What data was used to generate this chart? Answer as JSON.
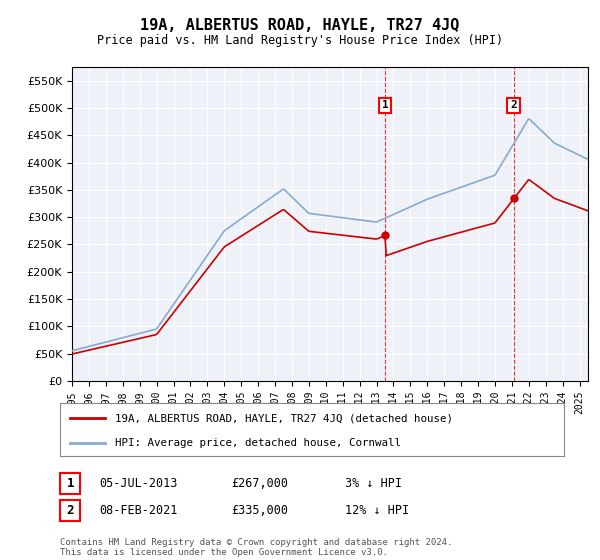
{
  "title": "19A, ALBERTUS ROAD, HAYLE, TR27 4JQ",
  "subtitle": "Price paid vs. HM Land Registry's House Price Index (HPI)",
  "legend_line1": "19A, ALBERTUS ROAD, HAYLE, TR27 4JQ (detached house)",
  "legend_line2": "HPI: Average price, detached house, Cornwall",
  "purchase1_label": "1",
  "purchase1_date": "05-JUL-2013",
  "purchase1_price": 267000,
  "purchase1_note": "3% ↓ HPI",
  "purchase1_year": 2013.5,
  "purchase2_label": "2",
  "purchase2_date": "08-FEB-2021",
  "purchase2_price": 335000,
  "purchase2_note": "12% ↓ HPI",
  "purchase2_year": 2021.1,
  "footer": "Contains HM Land Registry data © Crown copyright and database right 2024.\nThis data is licensed under the Open Government Licence v3.0.",
  "ylim": [
    0,
    575000
  ],
  "xlim_start": 1995,
  "xlim_end": 2025.5,
  "plot_bg": "#eef2f8",
  "red_line_color": "#cc0000",
  "blue_line_color": "#88aacc"
}
